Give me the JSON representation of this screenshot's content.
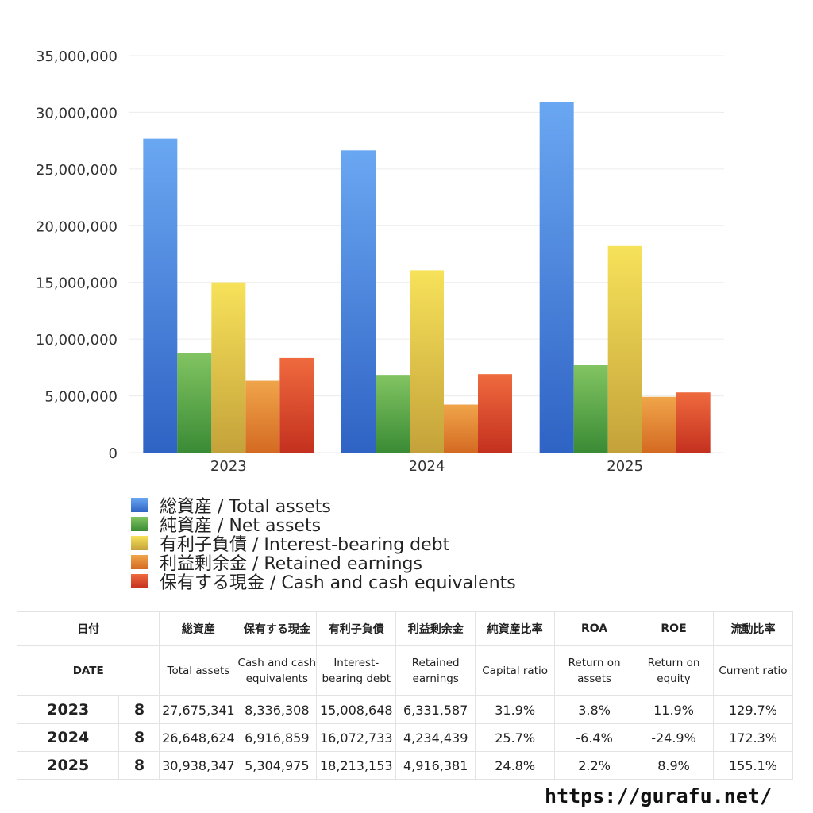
{
  "chart_data": {
    "type": "bar",
    "categories": [
      "2023",
      "2024",
      "2025"
    ],
    "ylim": [
      0,
      35000000
    ],
    "yticks": [
      "0",
      "5,000,000",
      "10,000,000",
      "15,000,000",
      "20,000,000",
      "25,000,000",
      "30,000,000",
      "35,000,000"
    ],
    "grid": true,
    "legend_position": "bottom-left",
    "series": [
      {
        "name": "総資産 / Total assets",
        "values": [
          27675341,
          26648624,
          30938347
        ],
        "color_top": "#6aa7f2",
        "color_bottom": "#2f63c4"
      },
      {
        "name": "純資産 / Net assets",
        "values": [
          8800000,
          6850000,
          7700000
        ],
        "color_top": "#82c462",
        "color_bottom": "#3a8b35"
      },
      {
        "name": "有利子負債 / Interest-bearing debt",
        "values": [
          15008648,
          16072733,
          18213153
        ],
        "color_top": "#f7e25a",
        "color_bottom": "#c4a23a"
      },
      {
        "name": "利益剰余金 / Retained earnings",
        "values": [
          6331587,
          4234439,
          4916381
        ],
        "color_top": "#f0a54a",
        "color_bottom": "#d46a22"
      },
      {
        "name": "保有する現金 /  Cash and cash equivalents",
        "values": [
          8336308,
          6916859,
          5304975
        ],
        "color_top": "#ef6a3e",
        "color_bottom": "#c4311f"
      }
    ]
  },
  "table": {
    "headers_jp": [
      "日付",
      "総資産",
      "保有する現金",
      "有利子負債",
      "利益剰余金",
      "純資産比率",
      "ROA",
      "ROE",
      "流動比率"
    ],
    "headers_en": [
      "DATE",
      "Total assets",
      "Cash and cash equivalents",
      "Interest-bearing debt",
      "Retained earnings",
      "Capital ratio",
      "Return on assets",
      "Return on equity",
      "Current ratio"
    ],
    "rows": [
      {
        "year": "2023",
        "month": "8",
        "total_assets": "27,675,341",
        "cash": "8,336,308",
        "debt": "15,008,648",
        "retained": "6,331,587",
        "capital_ratio": "31.9%",
        "roa": "3.8%",
        "roe": "11.9%",
        "current_ratio": "129.7%"
      },
      {
        "year": "2024",
        "month": "8",
        "total_assets": "26,648,624",
        "cash": "6,916,859",
        "debt": "16,072,733",
        "retained": "4,234,439",
        "capital_ratio": "25.7%",
        "roa": "-6.4%",
        "roe": "-24.9%",
        "current_ratio": "172.3%"
      },
      {
        "year": "2025",
        "month": "8",
        "total_assets": "30,938,347",
        "cash": "5,304,975",
        "debt": "18,213,153",
        "retained": "4,916,381",
        "capital_ratio": "24.8%",
        "roa": "2.2%",
        "roe": "8.9%",
        "current_ratio": "155.1%"
      }
    ]
  },
  "footer": {
    "url": "https://gurafu.net/"
  }
}
